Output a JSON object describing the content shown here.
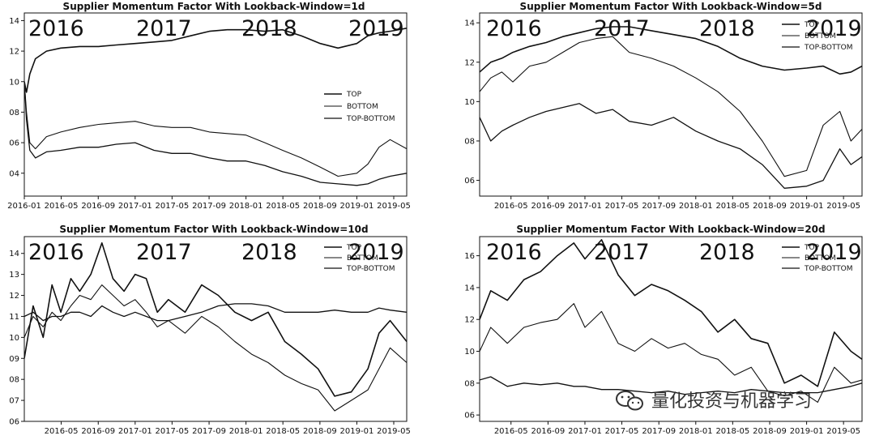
{
  "chart_data": [
    {
      "type": "line",
      "title": "Supplier Momentum Factor With Lookback-Window=1d",
      "ylim": [
        0.25,
        1.45
      ],
      "yticks": [
        0.4,
        0.6,
        0.8,
        1.0,
        1.2,
        1.4
      ],
      "ytick_labels": [
        "04",
        "06",
        "08",
        "10",
        "12",
        "14"
      ],
      "x_range": [
        2016.0,
        2019.45
      ],
      "xticks": [
        2016.0,
        2016.333,
        2016.667,
        2017.0,
        2017.333,
        2017.667,
        2018.0,
        2018.333,
        2018.667,
        2019.0,
        2019.333
      ],
      "xtick_labels": [
        "2016-01",
        "2016-05",
        "2016-09",
        "2017-01",
        "2017-05",
        "2017-09",
        "2018-01",
        "2018-05",
        "2018-09",
        "2019-01",
        "2019-05"
      ],
      "years": [
        "2016",
        "2017",
        "2018",
        "2019"
      ],
      "legend": [
        "TOP",
        "BOTTOM",
        "TOP-BOTTOM"
      ],
      "legend_loc": "center-right",
      "series": [
        {
          "name": "TOP",
          "x": [
            2016.0,
            2016.02,
            2016.05,
            2016.1,
            2016.2,
            2016.33,
            2016.5,
            2016.67,
            2016.83,
            2017.0,
            2017.17,
            2017.33,
            2017.5,
            2017.67,
            2017.83,
            2018.0,
            2018.17,
            2018.33,
            2018.5,
            2018.67,
            2018.83,
            2019.0,
            2019.1,
            2019.2,
            2019.3,
            2019.45
          ],
          "y": [
            1.0,
            0.93,
            1.05,
            1.15,
            1.2,
            1.22,
            1.23,
            1.23,
            1.24,
            1.25,
            1.26,
            1.27,
            1.3,
            1.33,
            1.34,
            1.34,
            1.33,
            1.34,
            1.3,
            1.25,
            1.22,
            1.25,
            1.3,
            1.32,
            1.33,
            1.35
          ]
        },
        {
          "name": "BOTTOM",
          "x": [
            2016.0,
            2016.02,
            2016.05,
            2016.1,
            2016.2,
            2016.33,
            2016.5,
            2016.67,
            2016.83,
            2017.0,
            2017.17,
            2017.33,
            2017.5,
            2017.67,
            2017.83,
            2018.0,
            2018.17,
            2018.33,
            2018.5,
            2018.67,
            2018.83,
            2019.0,
            2019.1,
            2019.2,
            2019.3,
            2019.45
          ],
          "y": [
            1.0,
            0.8,
            0.6,
            0.56,
            0.64,
            0.67,
            0.7,
            0.72,
            0.73,
            0.74,
            0.71,
            0.7,
            0.7,
            0.67,
            0.66,
            0.65,
            0.6,
            0.55,
            0.5,
            0.44,
            0.38,
            0.4,
            0.46,
            0.57,
            0.62,
            0.56
          ]
        },
        {
          "name": "TOP-BOTTOM",
          "x": [
            2016.0,
            2016.02,
            2016.05,
            2016.1,
            2016.2,
            2016.33,
            2016.5,
            2016.67,
            2016.83,
            2017.0,
            2017.17,
            2017.33,
            2017.5,
            2017.67,
            2017.83,
            2018.0,
            2018.17,
            2018.33,
            2018.5,
            2018.67,
            2018.83,
            2019.0,
            2019.1,
            2019.2,
            2019.3,
            2019.45
          ],
          "y": [
            1.0,
            0.75,
            0.55,
            0.5,
            0.54,
            0.55,
            0.57,
            0.57,
            0.59,
            0.6,
            0.55,
            0.53,
            0.53,
            0.5,
            0.48,
            0.48,
            0.45,
            0.41,
            0.38,
            0.34,
            0.33,
            0.32,
            0.33,
            0.36,
            0.38,
            0.4
          ]
        }
      ]
    },
    {
      "type": "line",
      "title": "Supplier Momentum Factor With Lookback-Window=5d",
      "ylim": [
        0.52,
        1.45
      ],
      "yticks": [
        0.6,
        0.8,
        1.0,
        1.2,
        1.4
      ],
      "ytick_labels": [
        "06",
        "08",
        "10",
        "12",
        "14"
      ],
      "x_range": [
        2016.05,
        2019.5
      ],
      "xticks": [
        2016.333,
        2016.667,
        2017.0,
        2017.333,
        2017.667,
        2018.0,
        2018.333,
        2018.667,
        2019.0,
        2019.333
      ],
      "xtick_labels": [
        "2016-05",
        "2016-09",
        "2017-01",
        "2017-05",
        "2017-09",
        "2018-01",
        "2018-05",
        "2018-09",
        "2019-01",
        "2019-05"
      ],
      "years": [
        "2016",
        "2017",
        "2018",
        "2019"
      ],
      "legend": [
        "TOP",
        "BOTTOM",
        "TOP-BOTTOM"
      ],
      "legend_loc": "upper-right",
      "series": [
        {
          "name": "TOP",
          "x": [
            2016.05,
            2016.15,
            2016.25,
            2016.35,
            2016.5,
            2016.65,
            2016.8,
            2016.95,
            2017.1,
            2017.25,
            2017.4,
            2017.6,
            2017.8,
            2018.0,
            2018.2,
            2018.4,
            2018.6,
            2018.8,
            2019.0,
            2019.15,
            2019.3,
            2019.4,
            2019.5
          ],
          "y": [
            1.15,
            1.2,
            1.22,
            1.25,
            1.28,
            1.3,
            1.33,
            1.35,
            1.37,
            1.38,
            1.38,
            1.36,
            1.34,
            1.32,
            1.28,
            1.22,
            1.18,
            1.16,
            1.17,
            1.18,
            1.14,
            1.15,
            1.18
          ]
        },
        {
          "name": "BOTTOM",
          "x": [
            2016.05,
            2016.15,
            2016.25,
            2016.35,
            2016.5,
            2016.65,
            2016.8,
            2016.95,
            2017.1,
            2017.25,
            2017.4,
            2017.6,
            2017.8,
            2018.0,
            2018.2,
            2018.4,
            2018.6,
            2018.8,
            2019.0,
            2019.15,
            2019.3,
            2019.4,
            2019.5
          ],
          "y": [
            1.05,
            1.12,
            1.15,
            1.1,
            1.18,
            1.2,
            1.25,
            1.3,
            1.32,
            1.33,
            1.25,
            1.22,
            1.18,
            1.12,
            1.05,
            0.95,
            0.8,
            0.62,
            0.65,
            0.88,
            0.95,
            0.8,
            0.86
          ]
        },
        {
          "name": "TOP-BOTTOM",
          "x": [
            2016.05,
            2016.15,
            2016.25,
            2016.35,
            2016.5,
            2016.65,
            2016.8,
            2016.95,
            2017.1,
            2017.25,
            2017.4,
            2017.6,
            2017.8,
            2018.0,
            2018.2,
            2018.4,
            2018.6,
            2018.8,
            2019.0,
            2019.15,
            2019.3,
            2019.4,
            2019.5
          ],
          "y": [
            0.92,
            0.8,
            0.85,
            0.88,
            0.92,
            0.95,
            0.97,
            0.99,
            0.94,
            0.96,
            0.9,
            0.88,
            0.92,
            0.85,
            0.8,
            0.76,
            0.68,
            0.56,
            0.57,
            0.6,
            0.76,
            0.68,
            0.72
          ]
        }
      ]
    },
    {
      "type": "line",
      "title": "Supplier Momentum Factor With Lookback-Window=10d",
      "ylim": [
        0.6,
        1.48
      ],
      "yticks": [
        0.6,
        0.7,
        0.8,
        0.9,
        1.0,
        1.1,
        1.2,
        1.3,
        1.4
      ],
      "ytick_labels": [
        "06",
        "07",
        "08",
        "09",
        "10",
        "11",
        "12",
        "13",
        "14"
      ],
      "x_range": [
        2016.0,
        2019.45
      ],
      "xticks": [
        2016.333,
        2016.667,
        2017.0,
        2017.333,
        2017.667,
        2018.0,
        2018.333,
        2018.667,
        2019.0,
        2019.333
      ],
      "xtick_labels": [
        "2016-05",
        "2016-09",
        "2017-01",
        "2017-05",
        "2017-09",
        "2018-01",
        "2018-05",
        "2018-09",
        "2019-01",
        "2019-05"
      ],
      "years": [
        "2016",
        "2017",
        "2018",
        "2019"
      ],
      "legend": [
        "TOP",
        "BOTTOM",
        "TOP-BOTTOM"
      ],
      "legend_loc": "upper-right",
      "series": [
        {
          "name": "TOP",
          "x": [
            2016.0,
            2016.08,
            2016.17,
            2016.25,
            2016.33,
            2016.42,
            2016.5,
            2016.6,
            2016.7,
            2016.8,
            2016.9,
            2017.0,
            2017.1,
            2017.2,
            2017.3,
            2017.45,
            2017.6,
            2017.75,
            2017.9,
            2018.05,
            2018.2,
            2018.35,
            2018.5,
            2018.65,
            2018.8,
            2018.95,
            2019.1,
            2019.2,
            2019.3,
            2019.45
          ],
          "y": [
            0.9,
            1.15,
            1.0,
            1.25,
            1.12,
            1.28,
            1.22,
            1.3,
            1.45,
            1.28,
            1.22,
            1.3,
            1.28,
            1.12,
            1.18,
            1.12,
            1.25,
            1.2,
            1.12,
            1.08,
            1.12,
            0.98,
            0.92,
            0.85,
            0.72,
            0.74,
            0.85,
            1.02,
            1.08,
            0.98
          ]
        },
        {
          "name": "BOTTOM",
          "x": [
            2016.0,
            2016.08,
            2016.17,
            2016.25,
            2016.33,
            2016.42,
            2016.5,
            2016.6,
            2016.7,
            2016.8,
            2016.9,
            2017.0,
            2017.1,
            2017.2,
            2017.3,
            2017.45,
            2017.6,
            2017.75,
            2017.9,
            2018.05,
            2018.2,
            2018.35,
            2018.5,
            2018.65,
            2018.8,
            2018.95,
            2019.1,
            2019.2,
            2019.3,
            2019.45
          ],
          "y": [
            1.0,
            1.1,
            1.05,
            1.12,
            1.08,
            1.15,
            1.2,
            1.18,
            1.25,
            1.2,
            1.15,
            1.18,
            1.12,
            1.05,
            1.08,
            1.02,
            1.1,
            1.05,
            0.98,
            0.92,
            0.88,
            0.82,
            0.78,
            0.75,
            0.65,
            0.7,
            0.75,
            0.85,
            0.95,
            0.88
          ]
        },
        {
          "name": "TOP-BOTTOM",
          "x": [
            2016.0,
            2016.08,
            2016.17,
            2016.25,
            2016.33,
            2016.42,
            2016.5,
            2016.6,
            2016.7,
            2016.8,
            2016.9,
            2017.0,
            2017.1,
            2017.2,
            2017.3,
            2017.45,
            2017.6,
            2017.75,
            2017.9,
            2018.05,
            2018.2,
            2018.35,
            2018.5,
            2018.65,
            2018.8,
            2018.95,
            2019.1,
            2019.2,
            2019.3,
            2019.45
          ],
          "y": [
            1.1,
            1.12,
            1.08,
            1.1,
            1.1,
            1.12,
            1.12,
            1.1,
            1.15,
            1.12,
            1.1,
            1.12,
            1.1,
            1.08,
            1.08,
            1.1,
            1.12,
            1.15,
            1.16,
            1.16,
            1.15,
            1.12,
            1.12,
            1.12,
            1.13,
            1.12,
            1.12,
            1.14,
            1.13,
            1.12
          ]
        }
      ]
    },
    {
      "type": "line",
      "title": "Supplier Momentum Factor With Lookback-Window=20d",
      "ylim": [
        0.56,
        1.72
      ],
      "yticks": [
        0.6,
        0.8,
        1.0,
        1.2,
        1.4,
        1.6
      ],
      "ytick_labels": [
        "06",
        "08",
        "10",
        "12",
        "14",
        "16"
      ],
      "x_range": [
        2016.05,
        2019.5
      ],
      "xticks": [
        2016.333,
        2016.667,
        2017.0,
        2017.333,
        2017.667,
        2018.0,
        2018.333,
        2018.667,
        2019.0,
        2019.333
      ],
      "xtick_labels": [
        "2016-05",
        "2016-09",
        "2017-01",
        "2017-05",
        "2017-09",
        "2018-01",
        "2018-05",
        "2018-09",
        "2019-01",
        "2019-05"
      ],
      "years": [
        "2016",
        "2017",
        "2018",
        "2019"
      ],
      "legend": [
        "TOP",
        "BOTTOM",
        "TOP-BOTTOM"
      ],
      "legend_loc": "upper-right",
      "series": [
        {
          "name": "TOP",
          "x": [
            2016.05,
            2016.15,
            2016.3,
            2016.45,
            2016.6,
            2016.75,
            2016.9,
            2017.0,
            2017.15,
            2017.3,
            2017.45,
            2017.6,
            2017.75,
            2017.9,
            2018.05,
            2018.2,
            2018.35,
            2018.5,
            2018.65,
            2018.8,
            2018.95,
            2019.1,
            2019.25,
            2019.4,
            2019.5
          ],
          "y": [
            1.2,
            1.38,
            1.32,
            1.45,
            1.5,
            1.6,
            1.68,
            1.58,
            1.7,
            1.48,
            1.35,
            1.42,
            1.38,
            1.32,
            1.25,
            1.12,
            1.2,
            1.08,
            1.05,
            0.8,
            0.85,
            0.78,
            1.12,
            1.0,
            0.95
          ]
        },
        {
          "name": "BOTTOM",
          "x": [
            2016.05,
            2016.15,
            2016.3,
            2016.45,
            2016.6,
            2016.75,
            2016.9,
            2017.0,
            2017.15,
            2017.3,
            2017.45,
            2017.6,
            2017.75,
            2017.9,
            2018.05,
            2018.2,
            2018.35,
            2018.5,
            2018.65,
            2018.8,
            2018.95,
            2019.1,
            2019.25,
            2019.4,
            2019.5
          ],
          "y": [
            1.0,
            1.15,
            1.05,
            1.15,
            1.18,
            1.2,
            1.3,
            1.15,
            1.25,
            1.05,
            1.0,
            1.08,
            1.02,
            1.05,
            0.98,
            0.95,
            0.85,
            0.9,
            0.75,
            0.72,
            0.75,
            0.68,
            0.9,
            0.8,
            0.82
          ]
        },
        {
          "name": "TOP-BOTTOM",
          "x": [
            2016.05,
            2016.15,
            2016.3,
            2016.45,
            2016.6,
            2016.75,
            2016.9,
            2017.0,
            2017.15,
            2017.3,
            2017.45,
            2017.6,
            2017.75,
            2017.9,
            2018.05,
            2018.2,
            2018.35,
            2018.5,
            2018.65,
            2018.8,
            2018.95,
            2019.1,
            2019.25,
            2019.4,
            2019.5
          ],
          "y": [
            0.82,
            0.84,
            0.78,
            0.8,
            0.79,
            0.8,
            0.78,
            0.78,
            0.76,
            0.76,
            0.75,
            0.74,
            0.75,
            0.73,
            0.74,
            0.75,
            0.74,
            0.76,
            0.75,
            0.74,
            0.74,
            0.74,
            0.76,
            0.78,
            0.8
          ]
        }
      ]
    }
  ],
  "watermark": {
    "text": "量化投资与机器学习",
    "icon": "wechat-icon"
  }
}
